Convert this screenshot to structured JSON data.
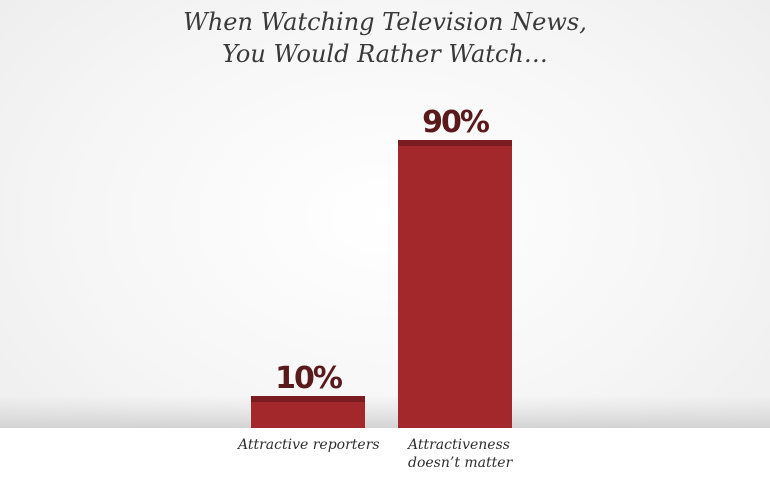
{
  "chart_data": {
    "type": "bar",
    "title": [
      "When Watching Television News,",
      "You Would Rather Watch…"
    ],
    "categories": [
      "Attractive reporters",
      "Attractiveness doesn’t matter"
    ],
    "values": [
      10,
      90
    ],
    "value_labels": [
      "10%",
      "90%"
    ],
    "color": "#a3282b"
  }
}
